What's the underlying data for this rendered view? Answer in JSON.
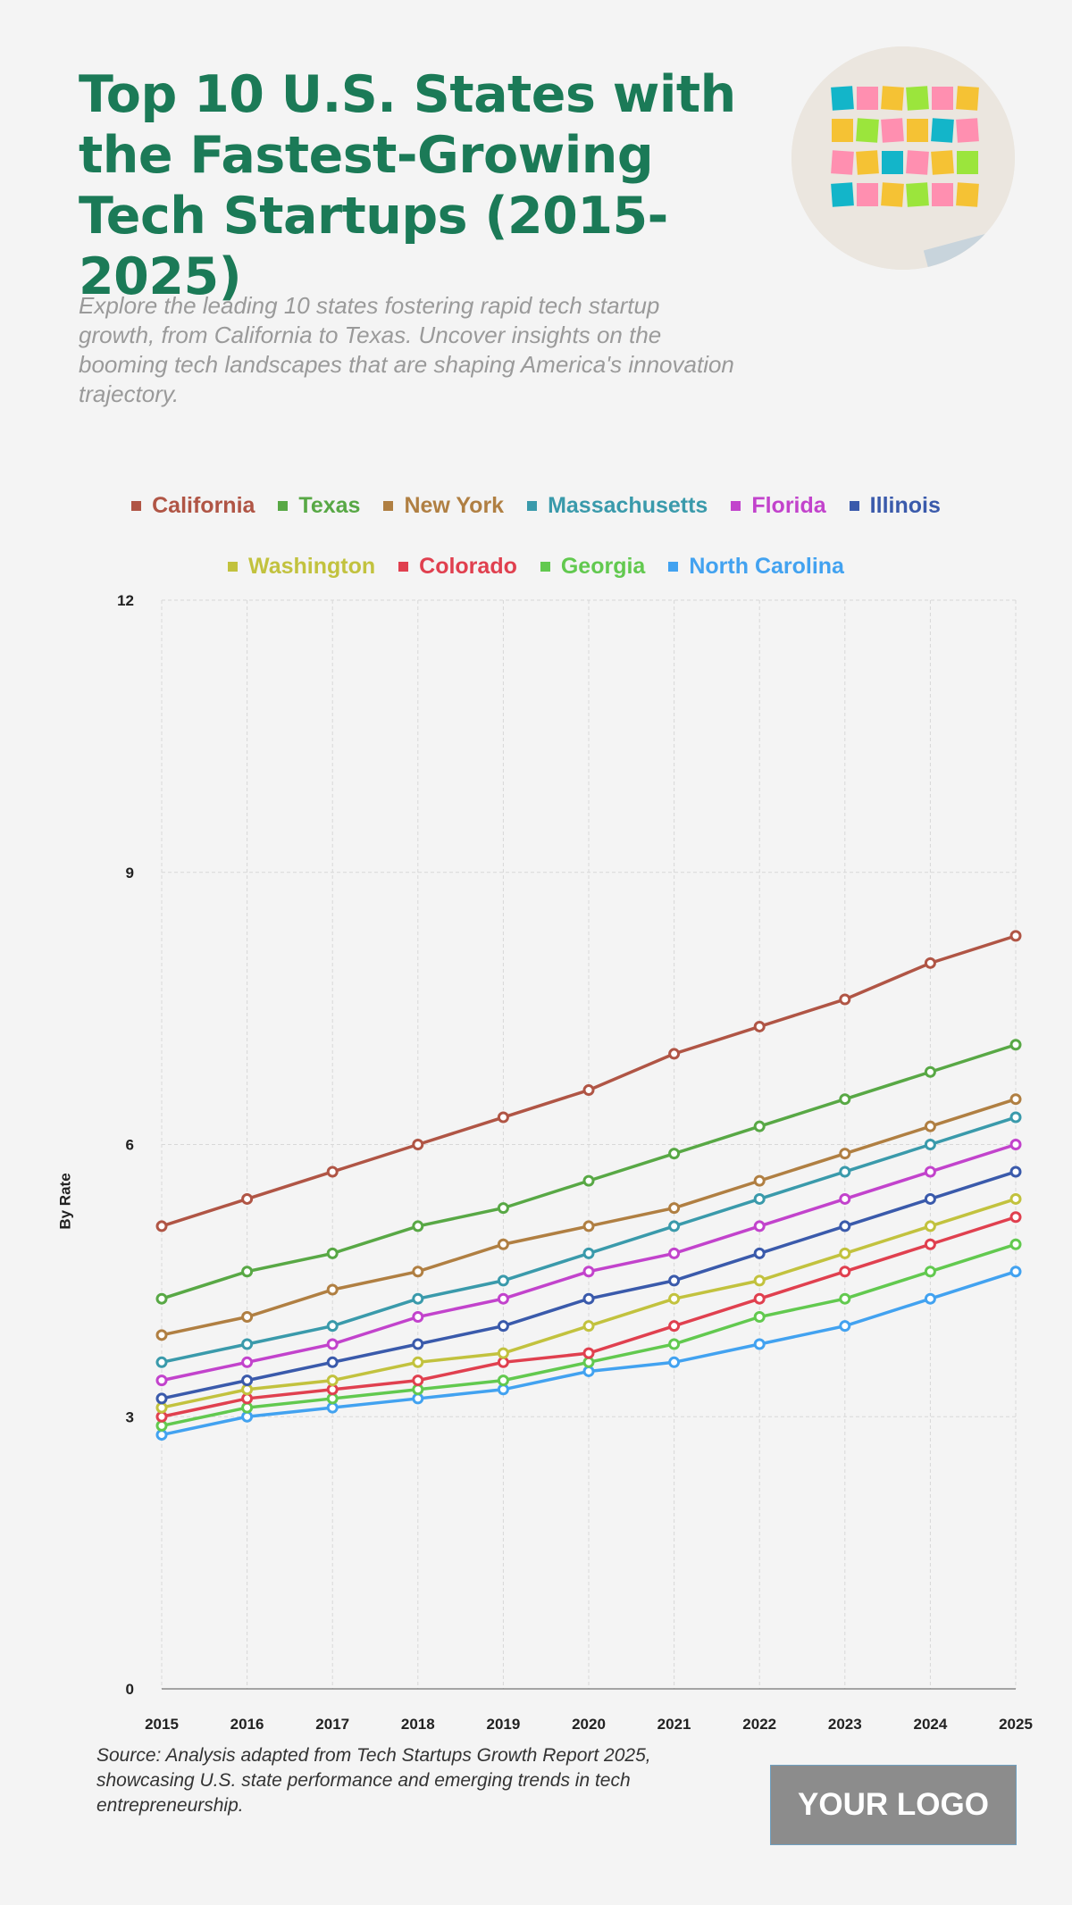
{
  "header": {
    "title": "Top 10 U.S. States with the Fastest-Growing Tech Startups (2015-2025)",
    "subtitle": "Explore the leading 10 states fostering rapid tech startup growth, from California to Texas. Uncover insights on the booming tech landscapes that are shaping America's innovation trajectory."
  },
  "footer": {
    "source": "Source: Analysis adapted from Tech Startups Growth Report 2025, showcasing U.S. state performance and emerging trends in tech entrepreneurship.",
    "logo": "YOUR LOGO"
  },
  "chart_data": {
    "type": "line",
    "ylabel": "By Rate",
    "ylim": [
      0,
      12
    ],
    "yticks": [
      "0",
      "3",
      "6",
      "9",
      "12"
    ],
    "grid": true,
    "legend": "top",
    "categories": [
      "2015",
      "2016",
      "2017",
      "2018",
      "2019",
      "2020",
      "2021",
      "2022",
      "2023",
      "2024",
      "2025"
    ],
    "series": [
      {
        "name": "California",
        "color": "#b05545",
        "values": [
          5.1,
          5.4,
          5.7,
          6.0,
          6.3,
          6.6,
          7.0,
          7.3,
          7.6,
          8.0,
          8.3
        ]
      },
      {
        "name": "Texas",
        "color": "#58a845",
        "values": [
          4.3,
          4.6,
          4.8,
          5.1,
          5.3,
          5.6,
          5.9,
          6.2,
          6.5,
          6.8,
          7.1
        ]
      },
      {
        "name": "New York",
        "color": "#b07f42",
        "values": [
          3.9,
          4.1,
          4.4,
          4.6,
          4.9,
          5.1,
          5.3,
          5.6,
          5.9,
          6.2,
          6.5
        ]
      },
      {
        "name": "Massachusetts",
        "color": "#3a9aab",
        "values": [
          3.6,
          3.8,
          4.0,
          4.3,
          4.5,
          4.8,
          5.1,
          5.4,
          5.7,
          6.0,
          6.3
        ]
      },
      {
        "name": "Florida",
        "color": "#c243cc",
        "values": [
          3.4,
          3.6,
          3.8,
          4.1,
          4.3,
          4.6,
          4.8,
          5.1,
          5.4,
          5.7,
          6.0
        ]
      },
      {
        "name": "Illinois",
        "color": "#3a5aab",
        "values": [
          3.2,
          3.4,
          3.6,
          3.8,
          4.0,
          4.3,
          4.5,
          4.8,
          5.1,
          5.4,
          5.7
        ]
      },
      {
        "name": "Washington",
        "color": "#c2c23e",
        "values": [
          3.1,
          3.3,
          3.4,
          3.6,
          3.7,
          4.0,
          4.3,
          4.5,
          4.8,
          5.1,
          5.4
        ]
      },
      {
        "name": "Colorado",
        "color": "#e0404f",
        "values": [
          3.0,
          3.2,
          3.3,
          3.4,
          3.6,
          3.7,
          4.0,
          4.3,
          4.6,
          4.9,
          5.2
        ]
      },
      {
        "name": "Georgia",
        "color": "#62c94f",
        "values": [
          2.9,
          3.1,
          3.2,
          3.3,
          3.4,
          3.6,
          3.8,
          4.1,
          4.3,
          4.6,
          4.9
        ]
      },
      {
        "name": "North Carolina",
        "color": "#42a2f0",
        "values": [
          2.8,
          3.0,
          3.1,
          3.2,
          3.3,
          3.5,
          3.6,
          3.8,
          4.0,
          4.3,
          4.6
        ]
      }
    ]
  }
}
